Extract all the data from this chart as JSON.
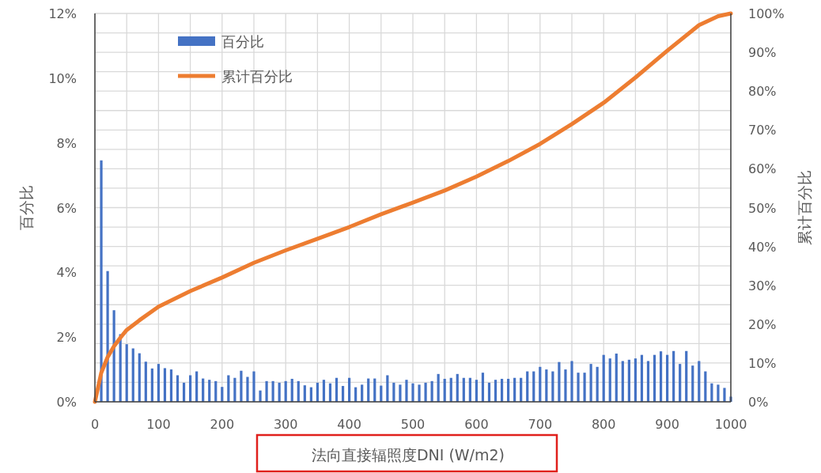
{
  "chart_data": {
    "type": "bar",
    "xlabel": "法向直接辐照度DNI (W/m2)",
    "ylabel": "百分比",
    "y2label": "累计百分比",
    "xlim": [
      0,
      1000
    ],
    "xticks": [
      0,
      {
        "value": 50,
        "label": null
      },
      100,
      {
        "value": 150,
        "label": null
      },
      200,
      {
        "value": 250,
        "label": null
      },
      300,
      {
        "value": 350,
        "label": null
      },
      400,
      {
        "value": 450,
        "label": null
      },
      500,
      {
        "value": 550,
        "label": null
      },
      600,
      {
        "value": 650,
        "label": null
      },
      700,
      {
        "value": 750,
        "label": null
      },
      800,
      {
        "value": 850,
        "label": null
      },
      900,
      {
        "value": 950,
        "label": null
      },
      1000
    ],
    "ylim": [
      0,
      12
    ],
    "yticks": [
      {
        "value": 0,
        "label": "0%"
      },
      {
        "value": 2,
        "label": "2%"
      },
      {
        "value": 4,
        "label": "4%"
      },
      {
        "value": 6,
        "label": "6%"
      },
      {
        "value": 8,
        "label": "8%"
      },
      {
        "value": 10,
        "label": "10%"
      },
      {
        "value": 12,
        "label": "12%"
      }
    ],
    "y2lim": [
      0,
      100
    ],
    "y2ticks": [
      {
        "value": 0,
        "label": "0%"
      },
      {
        "value": 5,
        "label": null
      },
      {
        "value": 10,
        "label": "10%"
      },
      {
        "value": 15,
        "label": null
      },
      {
        "value": 20,
        "label": "20%"
      },
      {
        "value": 25,
        "label": null
      },
      {
        "value": 30,
        "label": "30%"
      },
      {
        "value": 35,
        "label": null
      },
      {
        "value": 40,
        "label": "40%"
      },
      {
        "value": 45,
        "label": null
      },
      {
        "value": 50,
        "label": "50%"
      },
      {
        "value": 55,
        "label": null
      },
      {
        "value": 60,
        "label": "60%"
      },
      {
        "value": 65,
        "label": null
      },
      {
        "value": 70,
        "label": "70%"
      },
      {
        "value": 75,
        "label": null
      },
      {
        "value": 80,
        "label": "80%"
      },
      {
        "value": 85,
        "label": null
      },
      {
        "value": 90,
        "label": "90%"
      },
      {
        "value": 95,
        "label": null
      },
      {
        "value": 100,
        "label": "100%"
      }
    ],
    "grid": true,
    "legend": "top left",
    "series": [
      {
        "name": "百分比",
        "color": "#4472c4",
        "x": [
          10,
          20,
          30,
          40,
          50,
          60,
          70,
          80,
          90,
          100,
          110,
          120,
          130,
          140,
          150,
          160,
          170,
          180,
          190,
          200,
          210,
          220,
          230,
          240,
          250,
          260,
          270,
          280,
          290,
          300,
          310,
          320,
          330,
          340,
          350,
          360,
          370,
          380,
          390,
          400,
          410,
          420,
          430,
          440,
          450,
          460,
          470,
          480,
          490,
          500,
          510,
          520,
          530,
          540,
          550,
          560,
          570,
          580,
          590,
          600,
          610,
          620,
          630,
          640,
          650,
          660,
          670,
          680,
          690,
          700,
          710,
          720,
          730,
          740,
          750,
          760,
          770,
          780,
          790,
          800,
          810,
          820,
          830,
          840,
          850,
          860,
          870,
          880,
          890,
          900,
          910,
          920,
          930,
          940,
          950,
          960,
          970,
          980,
          990,
          1000
        ],
        "values": [
          7.46,
          4.04,
          2.83,
          2.09,
          1.78,
          1.65,
          1.5,
          1.24,
          1.03,
          1.17,
          1.04,
          1.0,
          0.82,
          0.59,
          0.82,
          0.94,
          0.72,
          0.68,
          0.64,
          0.46,
          0.82,
          0.74,
          0.96,
          0.77,
          0.94,
          0.35,
          0.64,
          0.64,
          0.59,
          0.64,
          0.71,
          0.64,
          0.51,
          0.45,
          0.59,
          0.68,
          0.57,
          0.74,
          0.49,
          0.74,
          0.45,
          0.53,
          0.72,
          0.72,
          0.5,
          0.82,
          0.59,
          0.53,
          0.68,
          0.57,
          0.53,
          0.59,
          0.64,
          0.86,
          0.71,
          0.74,
          0.86,
          0.74,
          0.74,
          0.68,
          0.9,
          0.59,
          0.68,
          0.71,
          0.71,
          0.74,
          0.74,
          0.94,
          0.94,
          1.08,
          1.0,
          0.94,
          1.23,
          1.0,
          1.26,
          0.9,
          0.9,
          1.17,
          1.08,
          1.45,
          1.34,
          1.49,
          1.26,
          1.3,
          1.34,
          1.45,
          1.26,
          1.45,
          1.56,
          1.45,
          1.57,
          1.17,
          1.57,
          1.12,
          1.26,
          0.94,
          0.57,
          0.53,
          0.43,
          0.16
        ]
      },
      {
        "name": "累计百分比",
        "type": "line",
        "axis": "y2",
        "color": "#ed7d31",
        "x": [
          0,
          10,
          20,
          30,
          40,
          50,
          70,
          100,
          150,
          200,
          250,
          300,
          350,
          400,
          450,
          500,
          550,
          600,
          650,
          700,
          750,
          800,
          850,
          900,
          950,
          980,
          1000
        ],
        "values": [
          0,
          7.5,
          11.5,
          14.3,
          16.5,
          18.5,
          21,
          24.5,
          28.5,
          32,
          35.8,
          39,
          42,
          45,
          48.3,
          51.3,
          54.4,
          58,
          62,
          66.4,
          71.5,
          77,
          83.5,
          90.4,
          97,
          99.3,
          100
        ]
      }
    ]
  }
}
